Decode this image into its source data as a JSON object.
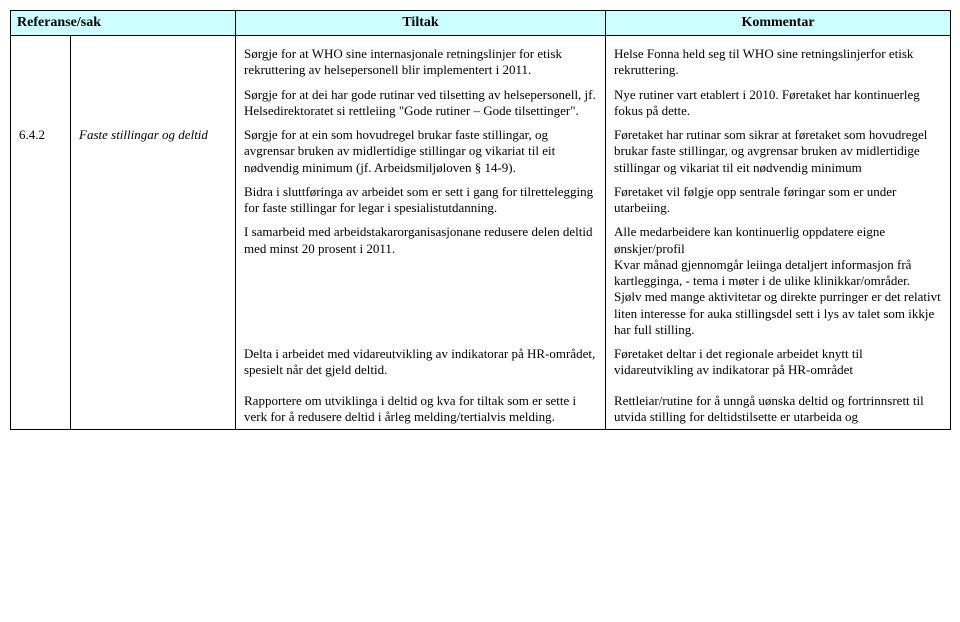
{
  "table": {
    "header_bg": "#ccffff",
    "border_color": "#000000",
    "font_family": "Times New Roman",
    "header_fontsize": 14,
    "body_fontsize": 13,
    "columns": {
      "ref": "Referanse/sak",
      "tiltak": "Tiltak",
      "kommentar": "Kommentar"
    }
  },
  "rows": {
    "r1": {
      "tiltak": "Sørgje for at WHO sine internasjonale retningslinjer for etisk rekruttering av helsepersonell blir implementert i 2011.",
      "kommentar": "Helse Fonna held seg til  WHO sine retningslinjerfor etisk rekruttering."
    },
    "r2": {
      "tiltak": "Sørgje for at dei har gode rutinar ved tilsetting av helsepersonell, jf. Helsedirektoratet si rettleiing \"Gode rutiner – Gode tilsettinger\".",
      "kommentar": "Nye rutiner vart etablert i 2010. Føretaket har  kontinuerleg fokus på dette."
    },
    "r3": {
      "ref": "6.4.2",
      "topic": "Faste stillingar og deltid",
      "tiltak": "Sørgje for at ein som hovudregel brukar faste stillingar, og avgrensar bruken av midlertidige stillingar og vikariat til eit nødvendig minimum (jf. Arbeidsmiljøloven § 14-9).",
      "kommentar": "Føretaket har rutinar som sikrar at føretaket som hovudregel brukar faste stillingar, og avgrensar bruken av midlertidige stillingar og vikariat til eit nødvendig minimum"
    },
    "r4": {
      "tiltak": "Bidra i sluttføringa av arbeidet som er sett i gang for tilrettelegging for faste stillingar for legar i spesialistutdanning.",
      "kommentar": "Føretaket vil følgje opp sentrale føringar som er under utarbeiing."
    },
    "r5": {
      "tiltak": "I samarbeid med arbeidstakarorganisasjonane redusere delen deltid med minst 20 prosent i 2011.",
      "kommentar": "Alle medarbeidere kan kontinuerlig oppdatere eigne ønskjer/profil\nKvar månad gjennomgår leiinga detaljert informasjon frå kartlegginga, - tema i møter i de ulike klinikkar/områder.\nSjølv med mange aktivitetar og direkte purringer er det relativt liten interesse for auka stillingsdel sett i lys av talet som ikkje har full stilling."
    },
    "r6": {
      "tiltak": "Delta i arbeidet med vidareutvikling av indikatorar på HR-området, spesielt når det gjeld deltid.",
      "kommentar": "Føretaket deltar i det regionale arbeidet knytt til vidareutvikling av indikatorar på HR-området"
    },
    "r7": {
      "tiltak": "Rapportere om utviklinga i deltid og kva for tiltak som er sette i verk for å redusere deltid i årleg melding/tertialvis melding.",
      "kommentar": "Rettleiar/rutine for å unngå uønska deltid og fortrinnsrett til utvida stilling for deltidstilsette er utarbeida og"
    }
  }
}
